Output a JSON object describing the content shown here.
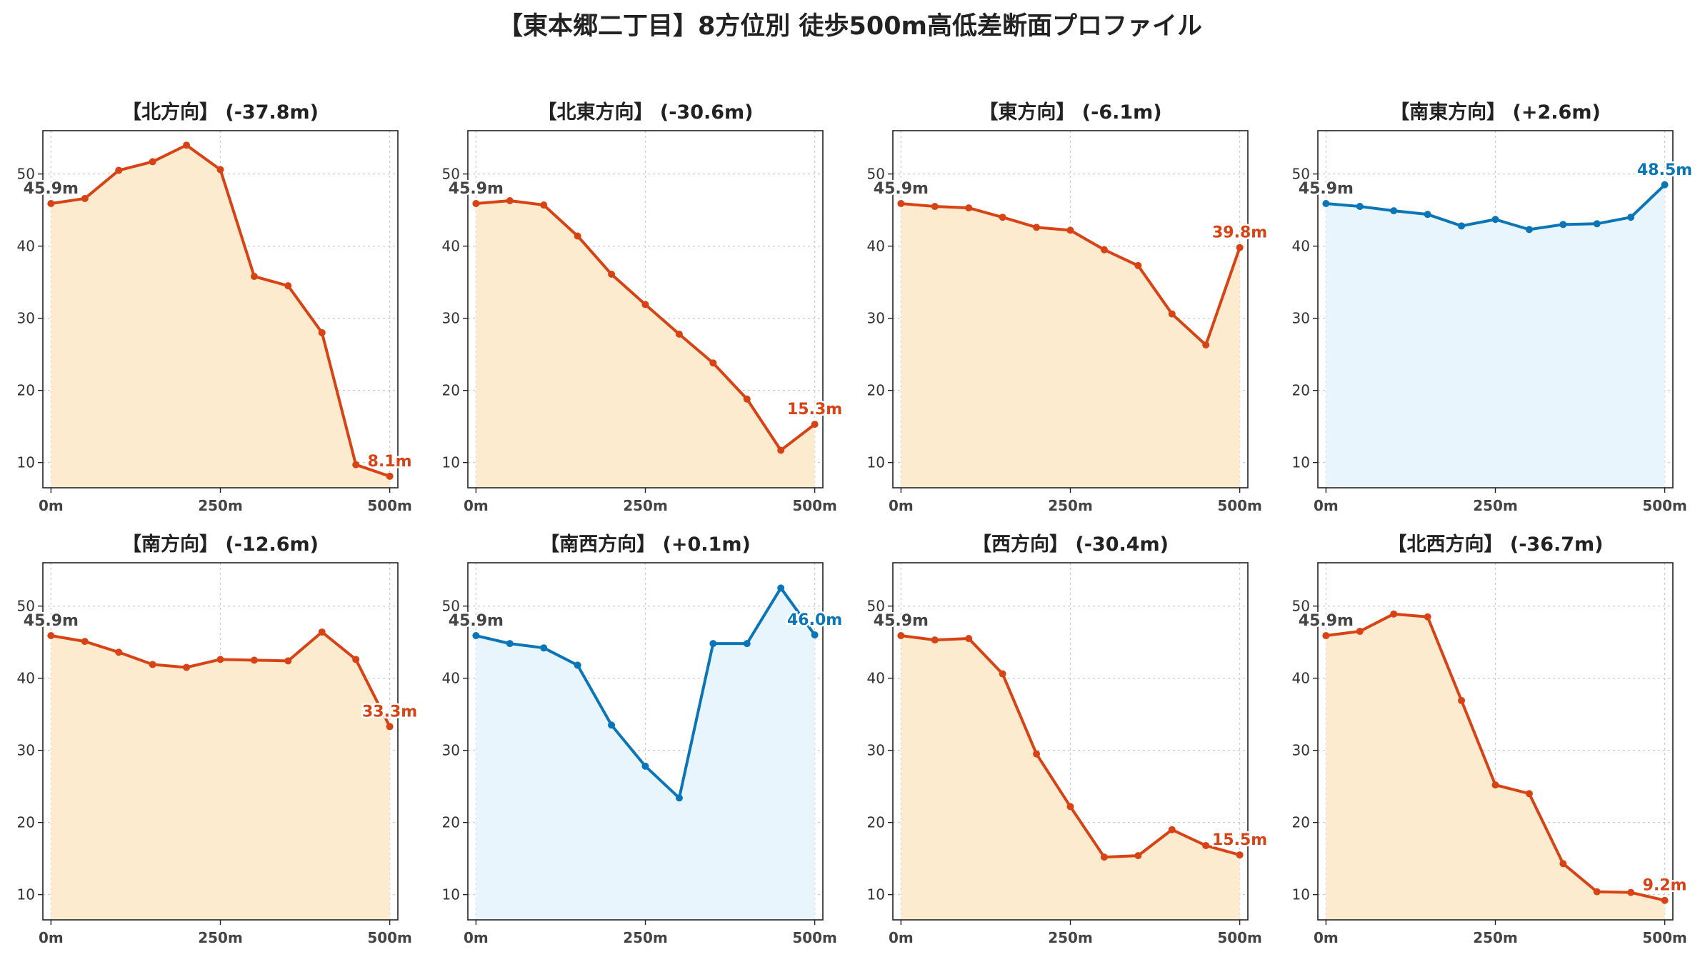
{
  "title": "【東本郷二丁目】8方位別 徒歩500m高低差断面プロファイル",
  "colors": {
    "down": "#d84315",
    "up": "#0a76b8",
    "down_fill": "#fdebd0",
    "up_fill": "#e8f5fc"
  },
  "chart_data": [
    {
      "type": "area",
      "title": "【北方向】 (-37.8m)",
      "trend": "down",
      "x": [
        0,
        50,
        100,
        150,
        200,
        250,
        300,
        350,
        400,
        450,
        500
      ],
      "values": [
        45.9,
        46.6,
        50.5,
        51.7,
        54.0,
        50.6,
        35.8,
        34.5,
        28.0,
        9.7,
        8.1
      ],
      "start_label": "45.9m",
      "end_label": "8.1m",
      "xticks": [
        "0m",
        "250m",
        "500m"
      ],
      "yticks": [
        10,
        20,
        30,
        40,
        50
      ],
      "ylim": [
        6.5,
        56
      ],
      "xlim": [
        -12,
        512
      ]
    },
    {
      "type": "area",
      "title": "【北東方向】 (-30.6m)",
      "trend": "down",
      "x": [
        0,
        50,
        100,
        150,
        200,
        250,
        300,
        350,
        400,
        450,
        500
      ],
      "values": [
        45.9,
        46.3,
        45.7,
        41.4,
        36.1,
        31.9,
        27.8,
        23.8,
        18.8,
        11.7,
        15.3
      ],
      "start_label": "45.9m",
      "end_label": "15.3m",
      "xticks": [
        "0m",
        "250m",
        "500m"
      ],
      "yticks": [
        10,
        20,
        30,
        40,
        50
      ],
      "ylim": [
        6.5,
        56
      ],
      "xlim": [
        -12,
        512
      ]
    },
    {
      "type": "area",
      "title": "【東方向】 (-6.1m)",
      "trend": "down",
      "x": [
        0,
        50,
        100,
        150,
        200,
        250,
        300,
        350,
        400,
        450,
        500
      ],
      "values": [
        45.9,
        45.5,
        45.3,
        44.0,
        42.6,
        42.2,
        39.5,
        37.3,
        30.6,
        26.3,
        39.8
      ],
      "start_label": "45.9m",
      "end_label": "39.8m",
      "xticks": [
        "0m",
        "250m",
        "500m"
      ],
      "yticks": [
        10,
        20,
        30,
        40,
        50
      ],
      "ylim": [
        6.5,
        56
      ],
      "xlim": [
        -12,
        512
      ]
    },
    {
      "type": "area",
      "title": "【南東方向】 (+2.6m)",
      "trend": "up",
      "x": [
        0,
        50,
        100,
        150,
        200,
        250,
        300,
        350,
        400,
        450,
        500
      ],
      "values": [
        45.9,
        45.5,
        44.9,
        44.4,
        42.8,
        43.7,
        42.3,
        43.0,
        43.1,
        44.0,
        48.5
      ],
      "start_label": "45.9m",
      "end_label": "48.5m",
      "xticks": [
        "0m",
        "250m",
        "500m"
      ],
      "yticks": [
        10,
        20,
        30,
        40,
        50
      ],
      "ylim": [
        6.5,
        56
      ],
      "xlim": [
        -12,
        512
      ]
    },
    {
      "type": "area",
      "title": "【南方向】 (-12.6m)",
      "trend": "down",
      "x": [
        0,
        50,
        100,
        150,
        200,
        250,
        300,
        350,
        400,
        450,
        500
      ],
      "values": [
        45.9,
        45.1,
        43.6,
        41.9,
        41.5,
        42.6,
        42.5,
        42.4,
        46.4,
        42.6,
        33.3
      ],
      "start_label": "45.9m",
      "end_label": "33.3m",
      "xticks": [
        "0m",
        "250m",
        "500m"
      ],
      "yticks": [
        10,
        20,
        30,
        40,
        50
      ],
      "ylim": [
        6.5,
        56
      ],
      "xlim": [
        -12,
        512
      ]
    },
    {
      "type": "area",
      "title": "【南西方向】 (+0.1m)",
      "trend": "up",
      "x": [
        0,
        50,
        100,
        150,
        200,
        250,
        300,
        350,
        400,
        450,
        500
      ],
      "values": [
        45.9,
        44.8,
        44.2,
        41.8,
        33.5,
        27.8,
        23.4,
        44.8,
        44.8,
        52.5,
        46.0
      ],
      "start_label": "45.9m",
      "end_label": "46.0m",
      "xticks": [
        "0m",
        "250m",
        "500m"
      ],
      "yticks": [
        10,
        20,
        30,
        40,
        50
      ],
      "ylim": [
        6.5,
        56
      ],
      "xlim": [
        -12,
        512
      ]
    },
    {
      "type": "area",
      "title": "【西方向】 (-30.4m)",
      "trend": "down",
      "x": [
        0,
        50,
        100,
        150,
        200,
        250,
        300,
        350,
        400,
        450,
        500
      ],
      "values": [
        45.9,
        45.3,
        45.5,
        40.6,
        29.5,
        22.2,
        15.2,
        15.4,
        19.0,
        16.8,
        15.5
      ],
      "start_label": "45.9m",
      "end_label": "15.5m",
      "xticks": [
        "0m",
        "250m",
        "500m"
      ],
      "yticks": [
        10,
        20,
        30,
        40,
        50
      ],
      "ylim": [
        6.5,
        56
      ],
      "xlim": [
        -12,
        512
      ]
    },
    {
      "type": "area",
      "title": "【北西方向】 (-36.7m)",
      "trend": "down",
      "x": [
        0,
        50,
        100,
        150,
        200,
        250,
        300,
        350,
        400,
        450,
        500
      ],
      "values": [
        45.9,
        46.5,
        48.9,
        48.5,
        36.9,
        25.2,
        24.0,
        14.3,
        10.4,
        10.3,
        9.2
      ],
      "start_label": "45.9m",
      "end_label": "9.2m",
      "xticks": [
        "0m",
        "250m",
        "500m"
      ],
      "yticks": [
        10,
        20,
        30,
        40,
        50
      ],
      "ylim": [
        6.5,
        56
      ],
      "xlim": [
        -12,
        512
      ]
    }
  ]
}
